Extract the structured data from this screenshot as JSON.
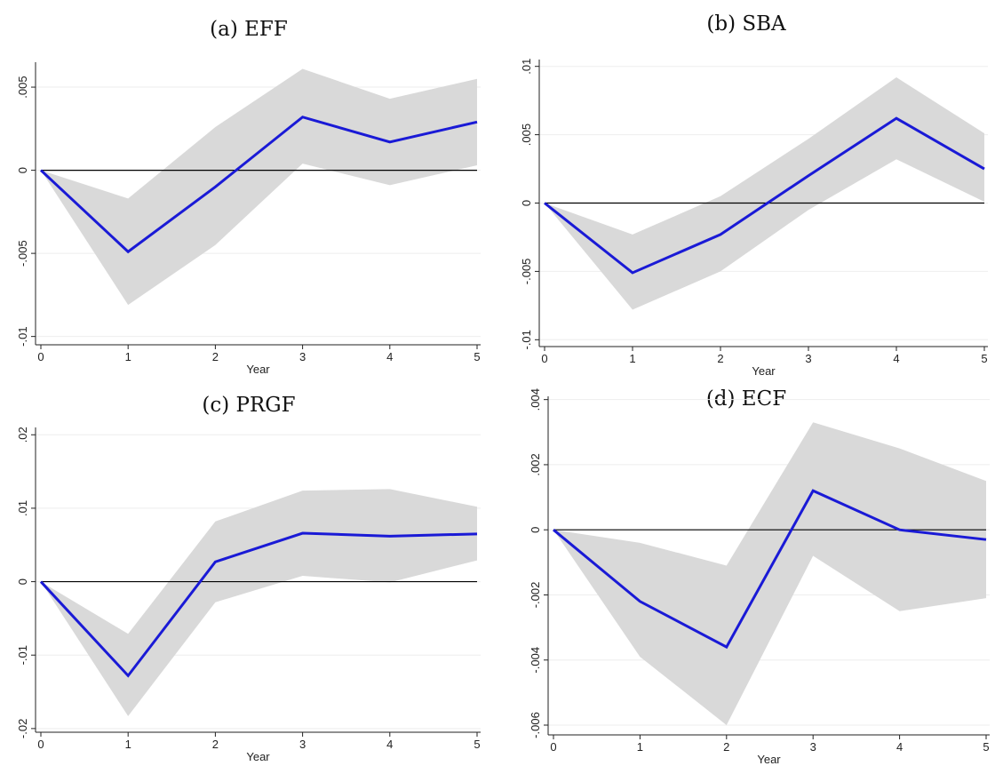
{
  "chart_data": [
    {
      "type": "line",
      "title": "(a) EFF",
      "xlabel": "Year",
      "ylabel": "",
      "x": [
        0,
        1,
        2,
        3,
        4,
        5
      ],
      "xticks": [
        "0",
        "1",
        "2",
        "3",
        "4",
        "5"
      ],
      "ylim": [
        -0.0105,
        0.0065
      ],
      "yticks": [
        -0.01,
        -0.005,
        0,
        0.005
      ],
      "ytick_labels": [
        "-.01",
        "-.005",
        "0",
        ".005"
      ],
      "grid": true,
      "series": [
        {
          "values": [
            0,
            -0.0049,
            -0.001,
            0.0032,
            0.0017,
            0.0029
          ],
          "color": "#1a1ad6"
        }
      ],
      "band": {
        "lower": [
          0,
          -0.0081,
          -0.0045,
          0.0004,
          -0.0009,
          0.0003
        ],
        "upper": [
          0,
          -0.0017,
          0.0026,
          0.0061,
          0.0043,
          0.0055
        ],
        "color": "#d9d9d9"
      },
      "reference_line": 0
    },
    {
      "type": "line",
      "title": "(b) SBA",
      "xlabel": "Year",
      "ylabel": "",
      "x": [
        0,
        1,
        2,
        3,
        4,
        5
      ],
      "xticks": [
        "0",
        "1",
        "2",
        "3",
        "4",
        "5"
      ],
      "ylim": [
        -0.0105,
        0.0105
      ],
      "yticks": [
        -0.01,
        -0.005,
        0,
        0.005,
        0.01
      ],
      "ytick_labels": [
        "-.01",
        "-.005",
        "0",
        ".005",
        ".01"
      ],
      "grid": true,
      "series": [
        {
          "values": [
            0,
            -0.0051,
            -0.0023,
            0.002,
            0.0062,
            0.0025
          ],
          "color": "#1a1ad6"
        }
      ],
      "band": {
        "lower": [
          0,
          -0.0078,
          -0.005,
          -0.0005,
          0.0032,
          0.0001
        ],
        "upper": [
          0,
          -0.0023,
          0.0005,
          0.0047,
          0.0092,
          0.0051
        ],
        "color": "#d9d9d9"
      },
      "reference_line": 0
    },
    {
      "type": "line",
      "title": "(c) PRGF",
      "xlabel": "Year",
      "ylabel": "",
      "x": [
        0,
        1,
        2,
        3,
        4,
        5
      ],
      "xticks": [
        "0",
        "1",
        "2",
        "3",
        "4",
        "5"
      ],
      "ylim": [
        -0.0205,
        0.021
      ],
      "yticks": [
        -0.02,
        -0.01,
        0,
        0.01,
        0.02
      ],
      "ytick_labels": [
        "-.02",
        "-.01",
        "0",
        ".01",
        ".02"
      ],
      "grid": true,
      "series": [
        {
          "values": [
            0,
            -0.0128,
            0.0027,
            0.0066,
            0.0062,
            0.0065
          ],
          "color": "#1a1ad6"
        }
      ],
      "band": {
        "lower": [
          0,
          -0.0183,
          -0.0028,
          0.0008,
          -0.0001,
          0.0029
        ],
        "upper": [
          0,
          -0.0071,
          0.0082,
          0.0124,
          0.0126,
          0.0102
        ],
        "color": "#d9d9d9"
      },
      "reference_line": 0
    },
    {
      "type": "line",
      "title": "(d) ECF",
      "xlabel": "Year",
      "ylabel": "",
      "x": [
        0,
        1,
        2,
        3,
        4,
        5
      ],
      "xticks": [
        "0",
        "1",
        "2",
        "3",
        "4",
        "5"
      ],
      "ylim": [
        -0.0063,
        0.0041
      ],
      "yticks": [
        -0.006,
        -0.004,
        -0.002,
        0,
        0.002,
        0.004
      ],
      "ytick_labels": [
        "-.006",
        "-.004",
        "-.002",
        "0",
        ".002",
        ".004"
      ],
      "grid": true,
      "series": [
        {
          "values": [
            0,
            -0.0022,
            -0.0036,
            0.0012,
            0.0,
            -0.0003
          ],
          "color": "#1a1ad6"
        }
      ],
      "band": {
        "lower": [
          0,
          -0.0039,
          -0.006,
          -0.0008,
          -0.0025,
          -0.0021
        ],
        "upper": [
          0,
          -0.0004,
          -0.0011,
          0.0033,
          0.0025,
          0.0015
        ],
        "color": "#d9d9d9"
      },
      "reference_line": 0
    }
  ]
}
